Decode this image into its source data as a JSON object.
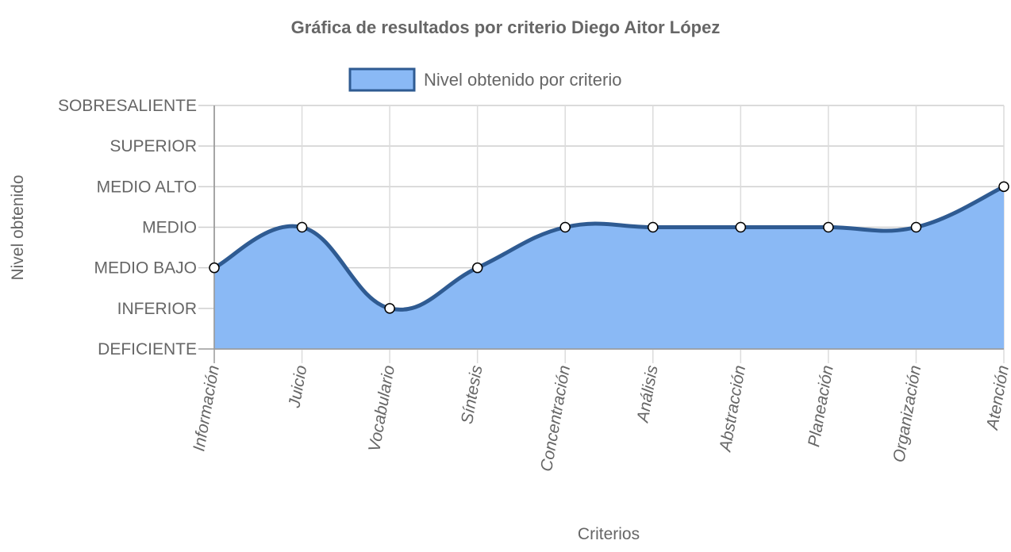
{
  "chart_data": {
    "type": "area",
    "title": "Gráfica de resultados por criterio Diego Aitor López",
    "xlabel": "Criterios",
    "ylabel": "Nivel obtenido",
    "categories": [
      "Información",
      "Juicio",
      "Vocabulario",
      "Síntesis",
      "Concentración",
      "Análisis",
      "Abstracción",
      "Planeación",
      "Organización",
      "Atención"
    ],
    "y_levels": [
      "DEFICIENTE",
      "INFERIOR",
      "MEDIO BAJO",
      "MEDIO",
      "MEDIO ALTO",
      "SUPERIOR",
      "SOBRESALIENTE"
    ],
    "ylim": [
      0,
      6
    ],
    "series": [
      {
        "name": "Nivel obtenido por criterio",
        "values": [
          2,
          3,
          1,
          2,
          3,
          3,
          3,
          3,
          3,
          4
        ],
        "value_labels": [
          "MEDIO BAJO",
          "MEDIO",
          "INFERIOR",
          "MEDIO BAJO",
          "MEDIO",
          "MEDIO",
          "MEDIO",
          "MEDIO",
          "MEDIO",
          "MEDIO ALTO"
        ],
        "fill_color": "#8ab9f5",
        "line_color": "#2f5b92",
        "legend_fill": "#8ab9f5",
        "legend_border": "#2f5b92"
      }
    ],
    "grid": true,
    "legend_position": "top-center",
    "point_color": "#ffffff"
  }
}
